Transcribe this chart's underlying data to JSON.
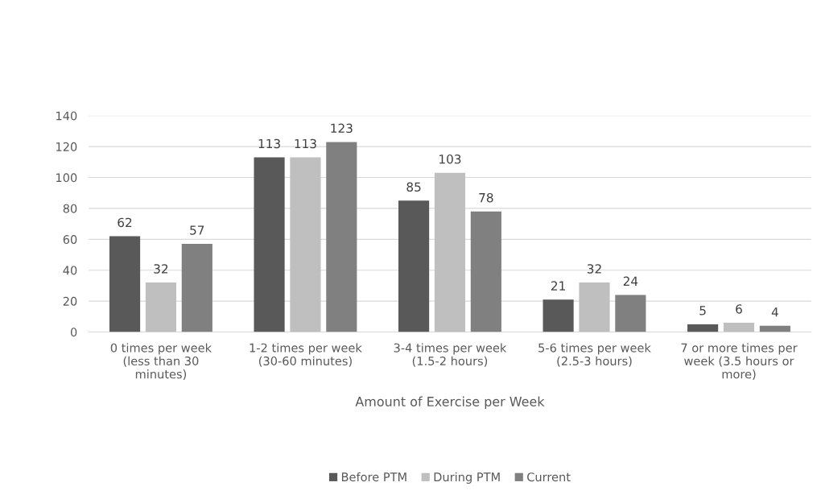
{
  "chart_data": {
    "type": "bar",
    "xlabel": "Amount of Exercise per Week",
    "categories": [
      "0 times per week\n(less than 30\nminutes)",
      "1-2 times per week\n(30-60 minutes)",
      "3-4 times per week\n(1.5-2 hours)",
      "5-6 times per week\n(2.5-3 hours)",
      "7 or more times per\nweek (3.5 hours or\nmore)"
    ],
    "series": [
      {
        "name": "Before PTM",
        "color": "#595959",
        "values": [
          62,
          113,
          85,
          21,
          5
        ]
      },
      {
        "name": "During PTM",
        "color": "#bfbfbf",
        "values": [
          32,
          113,
          103,
          32,
          6
        ]
      },
      {
        "name": "Current",
        "color": "#808080",
        "values": [
          57,
          123,
          78,
          24,
          4
        ]
      }
    ],
    "ylim": [
      0,
      140
    ],
    "yticks": [
      0,
      20,
      40,
      60,
      80,
      100,
      120,
      140
    ],
    "grid": "y",
    "legend": "bottom",
    "data_labels": true
  }
}
